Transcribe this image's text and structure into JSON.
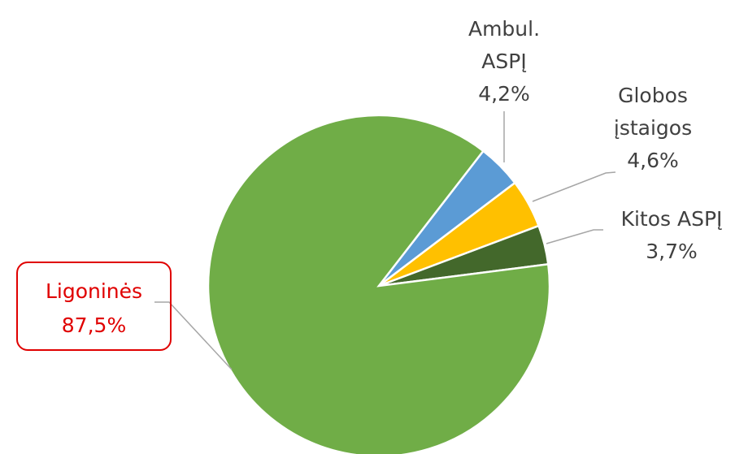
{
  "chart_data": {
    "type": "pie",
    "categories": [
      "Ambul. ASPĮ",
      "Globos įstaigos",
      "Kitos ASPĮ",
      "Ligoninės"
    ],
    "values": [
      4.2,
      4.6,
      3.7,
      87.5
    ],
    "value_labels": [
      "4,2%",
      "4,6%",
      "3,7%",
      "87,5%"
    ],
    "colors": [
      "#5b9bd5",
      "#ffc000",
      "#43682b",
      "#70ad47"
    ]
  }
}
